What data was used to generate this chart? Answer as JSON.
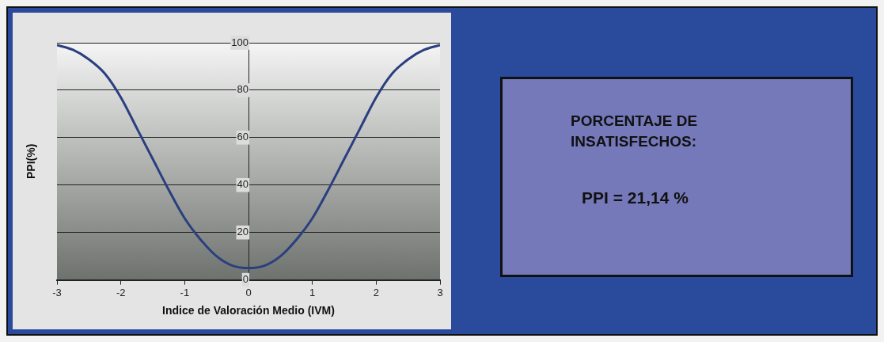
{
  "chart_data": {
    "type": "line",
    "xlabel": "Indice de Valoración Medio (IVM)",
    "ylabel": "PPI(%)",
    "x": [
      -3,
      -2.75,
      -2.5,
      -2.25,
      -2,
      -1.75,
      -1.5,
      -1.25,
      -1,
      -0.75,
      -0.5,
      -0.25,
      0,
      0.25,
      0.5,
      0.75,
      1,
      1.25,
      1.5,
      1.75,
      2,
      2.25,
      2.5,
      2.75,
      3
    ],
    "series": [
      {
        "color": "#2b3f80",
        "values": [
          99,
          97,
          93,
          87,
          77,
          64,
          51,
          38,
          26,
          17,
          10,
          6,
          5,
          6,
          10,
          17,
          26,
          38,
          51,
          64,
          77,
          87,
          93,
          97,
          99
        ]
      }
    ],
    "xlim": [
      -3,
      3
    ],
    "xticks": [
      -3,
      -2,
      -1,
      0,
      1,
      2,
      3
    ],
    "ylim": [
      0,
      100
    ],
    "yticks": [
      0,
      20,
      40,
      60,
      80,
      100
    ],
    "grid": "y",
    "legend": false,
    "marker": "none",
    "line_style": "solid",
    "annotations": [
      "PORCENTAJE DE INSATISFECHOS:",
      "PPI = 21,14 %"
    ]
  }
}
